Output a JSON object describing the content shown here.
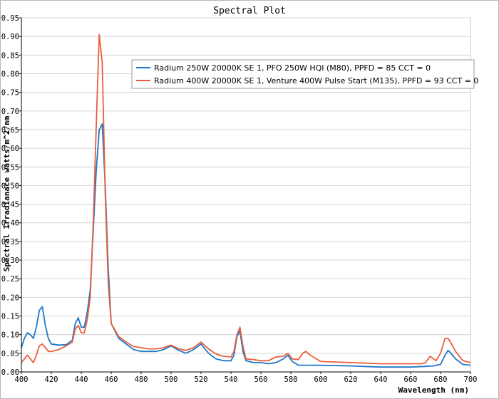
{
  "chart_data": {
    "type": "line",
    "title": "Spectral Plot",
    "xlabel": "Wavelength (nm)",
    "ylabel": "Spectral Irradianace watts/m^2/nm",
    "xlim": [
      400,
      700
    ],
    "ylim": [
      0,
      0.95
    ],
    "x_ticks": [
      400,
      420,
      440,
      460,
      480,
      500,
      520,
      540,
      560,
      580,
      600,
      620,
      640,
      660,
      680,
      700
    ],
    "y_ticks": [
      0,
      0.05,
      0.1,
      0.15,
      0.2,
      0.25,
      0.3,
      0.35,
      0.4,
      0.45,
      0.5,
      0.55,
      0.6,
      0.65,
      0.7,
      0.75,
      0.8,
      0.85,
      0.9,
      0.95
    ],
    "grid": true,
    "legend_position": "top-right",
    "series": [
      {
        "name": "Radium 250W 20000K SE 1, PFO 250W HQI (M80), PPFD = 85  CCT = 0",
        "color": "#1f77c8",
        "x": [
          400,
          402,
          404,
          406,
          408,
          410,
          412,
          414,
          416,
          418,
          420,
          425,
          430,
          434,
          436,
          438,
          440,
          442,
          444,
          446,
          448,
          450,
          452,
          454,
          456,
          458,
          460,
          465,
          470,
          475,
          480,
          485,
          490,
          495,
          500,
          505,
          510,
          515,
          520,
          525,
          530,
          535,
          540,
          542,
          544,
          546,
          548,
          550,
          555,
          560,
          565,
          570,
          575,
          578,
          581,
          585,
          590,
          600,
          620,
          640,
          660,
          670,
          675,
          680,
          683,
          685,
          687,
          690,
          695,
          700
        ],
        "values": [
          0.065,
          0.09,
          0.105,
          0.1,
          0.09,
          0.12,
          0.165,
          0.175,
          0.125,
          0.09,
          0.075,
          0.072,
          0.073,
          0.085,
          0.13,
          0.145,
          0.12,
          0.12,
          0.16,
          0.22,
          0.38,
          0.54,
          0.65,
          0.665,
          0.5,
          0.28,
          0.13,
          0.09,
          0.075,
          0.06,
          0.055,
          0.055,
          0.055,
          0.06,
          0.07,
          0.058,
          0.05,
          0.06,
          0.075,
          0.05,
          0.035,
          0.03,
          0.03,
          0.045,
          0.095,
          0.11,
          0.055,
          0.03,
          0.025,
          0.025,
          0.022,
          0.025,
          0.035,
          0.045,
          0.028,
          0.018,
          0.018,
          0.018,
          0.016,
          0.013,
          0.013,
          0.015,
          0.016,
          0.02,
          0.045,
          0.058,
          0.05,
          0.035,
          0.02,
          0.018
        ]
      },
      {
        "name": "Radium 400W 20000K SE 1, Venture 400W Pulse Start (M135), PPFD = 93  CCT = 0",
        "color": "#e8603c",
        "x": [
          400,
          404,
          406,
          408,
          410,
          412,
          414,
          416,
          418,
          420,
          425,
          430,
          434,
          436,
          438,
          440,
          442,
          444,
          446,
          448,
          450,
          452,
          454,
          456,
          458,
          460,
          465,
          470,
          475,
          480,
          485,
          490,
          495,
          500,
          505,
          510,
          515,
          520,
          525,
          530,
          535,
          540,
          542,
          544,
          546,
          548,
          550,
          555,
          560,
          565,
          570,
          575,
          578,
          581,
          585,
          588,
          590,
          593,
          600,
          620,
          640,
          660,
          667,
          670,
          673,
          677,
          680,
          683,
          685,
          687,
          690,
          695,
          700
        ],
        "values": [
          0.025,
          0.045,
          0.035,
          0.025,
          0.045,
          0.07,
          0.075,
          0.065,
          0.055,
          0.055,
          0.06,
          0.07,
          0.08,
          0.115,
          0.125,
          0.105,
          0.105,
          0.14,
          0.2,
          0.4,
          0.66,
          0.905,
          0.83,
          0.48,
          0.24,
          0.13,
          0.095,
          0.08,
          0.068,
          0.065,
          0.062,
          0.062,
          0.065,
          0.072,
          0.062,
          0.058,
          0.065,
          0.08,
          0.062,
          0.048,
          0.042,
          0.04,
          0.055,
          0.1,
          0.12,
          0.07,
          0.035,
          0.033,
          0.03,
          0.03,
          0.04,
          0.042,
          0.05,
          0.035,
          0.033,
          0.05,
          0.055,
          0.045,
          0.028,
          0.025,
          0.022,
          0.022,
          0.022,
          0.025,
          0.042,
          0.03,
          0.05,
          0.09,
          0.09,
          0.078,
          0.055,
          0.03,
          0.025
        ]
      }
    ]
  }
}
